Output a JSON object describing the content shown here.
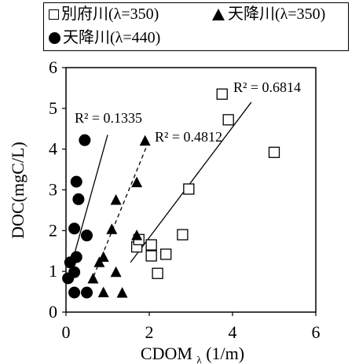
{
  "chart_data": {
    "type": "scatter",
    "title": "",
    "xlabel": "CDOM",
    "xlabel_sub": "λ",
    "xlabel_unit": "(1/m)",
    "ylabel": "DOC(mgC/L)",
    "xlim": [
      0,
      6
    ],
    "ylim": [
      0,
      6
    ],
    "xticks": [
      "0",
      "2",
      "4",
      "6"
    ],
    "yticks": [
      "0",
      "1",
      "2",
      "3",
      "4",
      "5",
      "6"
    ],
    "grid": false,
    "legend_position": "top",
    "series": [
      {
        "name": "別府川(λ=350)",
        "marker": "square-open",
        "points": [
          [
            3.75,
            5.35
          ],
          [
            3.9,
            4.72
          ],
          [
            5.0,
            3.92
          ],
          [
            2.95,
            3.02
          ],
          [
            2.8,
            1.9
          ],
          [
            2.05,
            1.65
          ],
          [
            1.7,
            1.6
          ],
          [
            2.05,
            1.38
          ],
          [
            2.4,
            1.42
          ],
          [
            2.2,
            0.95
          ],
          [
            1.75,
            1.78
          ]
        ],
        "r2_label": "R² = 0.6814",
        "trend": [
          [
            1.55,
            1.22
          ],
          [
            4.45,
            5.15
          ]
        ],
        "trend_style": "solid"
      },
      {
        "name": "天降川(λ=350)",
        "marker": "triangle-filled",
        "points": [
          [
            1.9,
            4.2
          ],
          [
            1.7,
            3.18
          ],
          [
            1.2,
            2.75
          ],
          [
            1.1,
            2.03
          ],
          [
            1.7,
            1.88
          ],
          [
            0.9,
            1.35
          ],
          [
            0.8,
            1.22
          ],
          [
            1.2,
            0.98
          ],
          [
            0.65,
            0.82
          ],
          [
            0.9,
            0.48
          ],
          [
            1.35,
            0.47
          ]
        ],
        "r2_label": "R² = 0.4812",
        "trend": [
          [
            0.6,
            0.72
          ],
          [
            1.95,
            4.1
          ]
        ],
        "trend_style": "dashed"
      },
      {
        "name": "天降川(λ=440)",
        "marker": "circle-filled",
        "points": [
          [
            0.45,
            4.22
          ],
          [
            0.25,
            3.2
          ],
          [
            0.3,
            2.77
          ],
          [
            0.2,
            2.05
          ],
          [
            0.5,
            1.88
          ],
          [
            0.25,
            1.35
          ],
          [
            0.1,
            1.22
          ],
          [
            0.2,
            0.98
          ],
          [
            0.05,
            0.83
          ],
          [
            0.2,
            0.48
          ],
          [
            0.5,
            0.48
          ]
        ],
        "r2_label": "R² = 0.1335",
        "trend": [
          [
            0.1,
            1.05
          ],
          [
            1.0,
            4.35
          ]
        ],
        "trend_style": "solid"
      }
    ]
  },
  "colors": {
    "axis": "#000000",
    "marker": "#000000",
    "background": "#ffffff"
  }
}
